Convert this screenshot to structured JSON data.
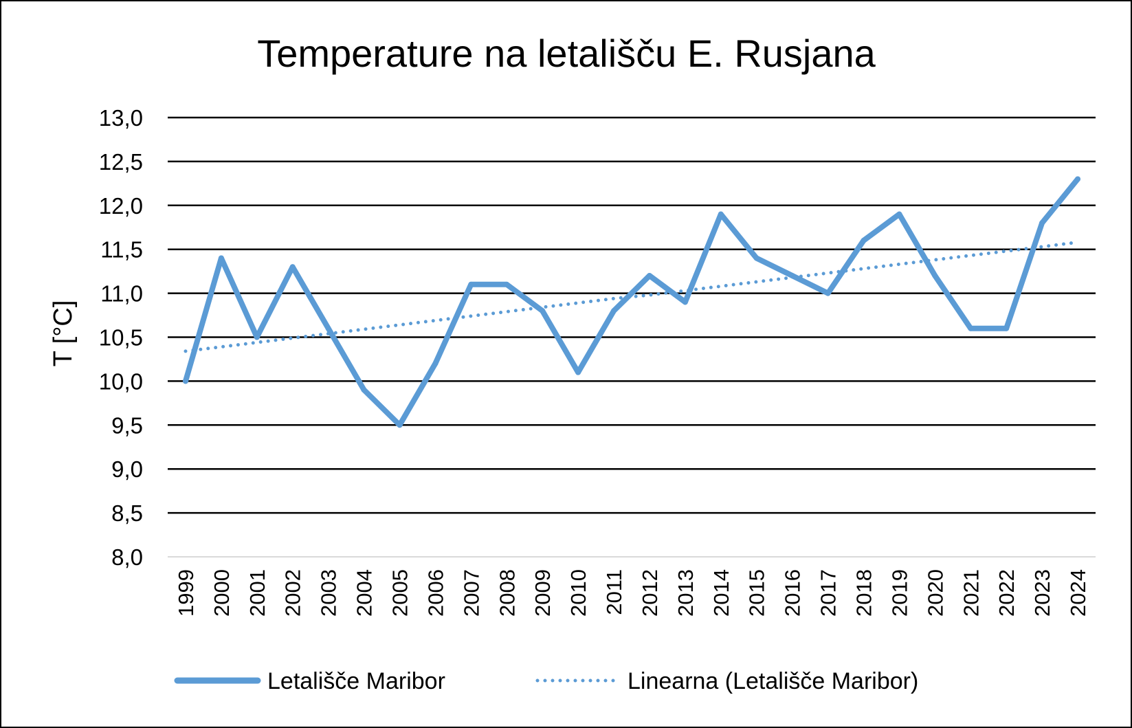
{
  "chart_data": {
    "type": "line",
    "title": "Temperature na letališču E. Rusjana",
    "xlabel": "",
    "ylabel": "T [°C]",
    "ylim": [
      8.0,
      13.0
    ],
    "ytick_step": 0.5,
    "ytick_labels": [
      "8,0",
      "8,5",
      "9,0",
      "9,5",
      "10,0",
      "10,5",
      "11,0",
      "11,5",
      "12,0",
      "12,5",
      "13,0"
    ],
    "grid": true,
    "legend_position": "bottom",
    "categories": [
      "1999",
      "2000",
      "2001",
      "2002",
      "2003",
      "2004",
      "2005",
      "2006",
      "2007",
      "2008",
      "2009",
      "2010",
      "2011",
      "2012",
      "2013",
      "2014",
      "2015",
      "2016",
      "2017",
      "2018",
      "2019",
      "2020",
      "2021",
      "2022",
      "2023",
      "2024"
    ],
    "series": [
      {
        "name": "Letališče Maribor",
        "style": "solid",
        "color": "#5B9BD5",
        "values": [
          10.0,
          11.4,
          10.5,
          11.3,
          10.6,
          9.9,
          9.5,
          10.2,
          11.1,
          11.1,
          10.8,
          10.1,
          10.8,
          11.2,
          10.9,
          11.9,
          11.4,
          11.2,
          11.0,
          11.6,
          11.9,
          11.2,
          10.6,
          10.6,
          11.8,
          12.3
        ]
      },
      {
        "name": "Linearna (Letališče Maribor)",
        "style": "dotted",
        "color": "#5B9BD5",
        "trendline": "linear",
        "values": [
          10.34,
          10.39,
          10.44,
          10.49,
          10.54,
          10.59,
          10.64,
          10.69,
          10.74,
          10.79,
          10.84,
          10.89,
          10.94,
          10.98,
          11.03,
          11.08,
          11.13,
          11.18,
          11.23,
          11.28,
          11.33,
          11.38,
          11.43,
          11.48,
          11.53,
          11.58
        ]
      }
    ]
  }
}
